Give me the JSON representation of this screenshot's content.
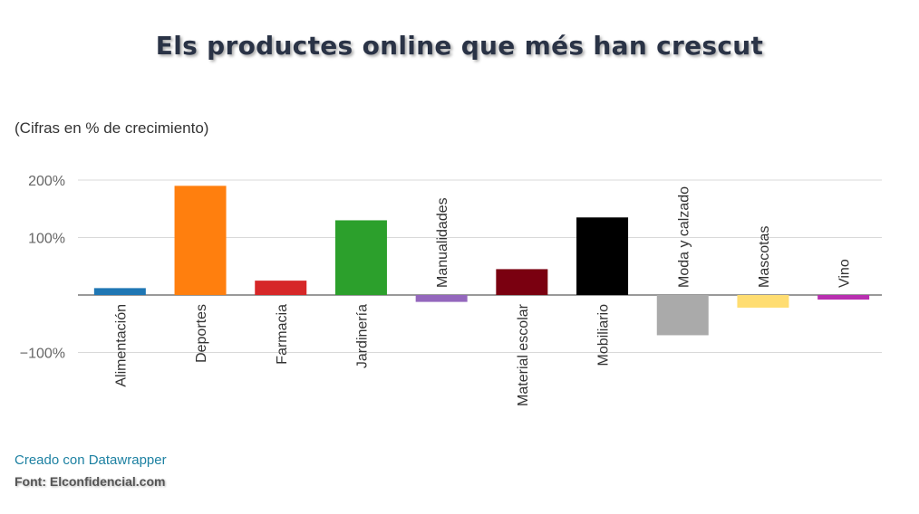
{
  "title": "Els productes online que més han crescut",
  "subtitle": "(Cifras en % de crecimiento)",
  "credit": "Creado con Datawrapper",
  "source": "Font: Elconfidencial.com",
  "chart_data": {
    "type": "bar",
    "categories": [
      "Alimentación",
      "Deportes",
      "Farmacia",
      "Jardinería",
      "Manualidades",
      "Material escolar",
      "Mobiliario",
      "Moda y calzado",
      "Mascotas",
      "Vino"
    ],
    "values": [
      12,
      190,
      25,
      130,
      -12,
      45,
      135,
      -70,
      -22,
      -8
    ],
    "colors": [
      "#1f77b4",
      "#ff7f0e",
      "#d62728",
      "#2ca02c",
      "#9467bd",
      "#7a0010",
      "#000000",
      "#aaaaaa",
      "#ffdd71",
      "#b82fb0"
    ],
    "yticks": [
      200,
      100,
      -100
    ],
    "ytick_labels": [
      "200%",
      "100%",
      "−100%"
    ],
    "ylim": [
      -100,
      200
    ],
    "grid": true
  }
}
